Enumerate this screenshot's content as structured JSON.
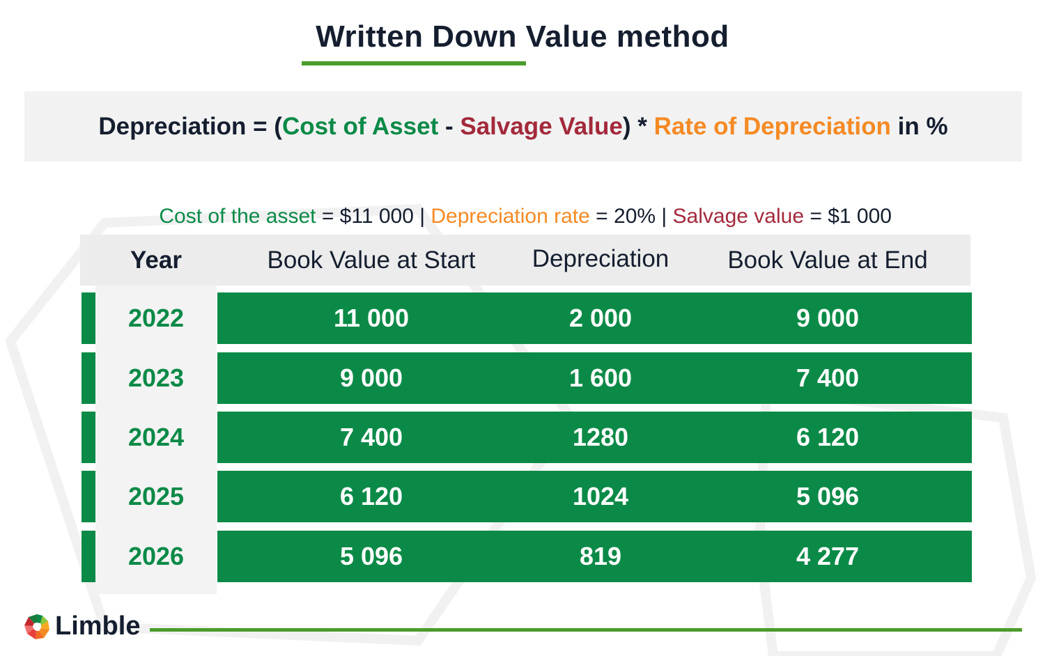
{
  "title": "Written Down Value method",
  "formula": {
    "lhs": "Depreciation = (",
    "cost": "Cost of Asset",
    "minus": " - ",
    "salvage": "Salvage Value",
    "mid": ") * ",
    "rate": "Rate of Depreciation",
    "tail": " in %"
  },
  "params": {
    "cost_label": "Cost of the asset",
    "cost_value": " = $11 000 ",
    "sep1": "|",
    "rate_label": " Depreciation rate",
    "rate_value": " = 20% ",
    "sep2": "|",
    "salvage_label": " Salvage value",
    "salvage_value": " = $1 000"
  },
  "table": {
    "headers": [
      "Year",
      "Book Value at Start",
      "Depreciation",
      "Book Value at End"
    ],
    "rows": [
      [
        "2022",
        "11 000",
        "2 000",
        "9 000"
      ],
      [
        "2023",
        "9 000",
        "1 600",
        "7 400"
      ],
      [
        "2024",
        "7 400",
        "1280",
        "6 120"
      ],
      [
        "2025",
        "6 120",
        "1024",
        "5 096"
      ],
      [
        "2026",
        "5 096",
        "819",
        "4 277"
      ]
    ]
  },
  "brand": {
    "name": "Limble"
  },
  "colors": {
    "green": "#0b8a47",
    "red": "#a3293b",
    "orange": "#f58a24",
    "dark": "#141e2f",
    "accent_line": "#4a9c2a"
  }
}
